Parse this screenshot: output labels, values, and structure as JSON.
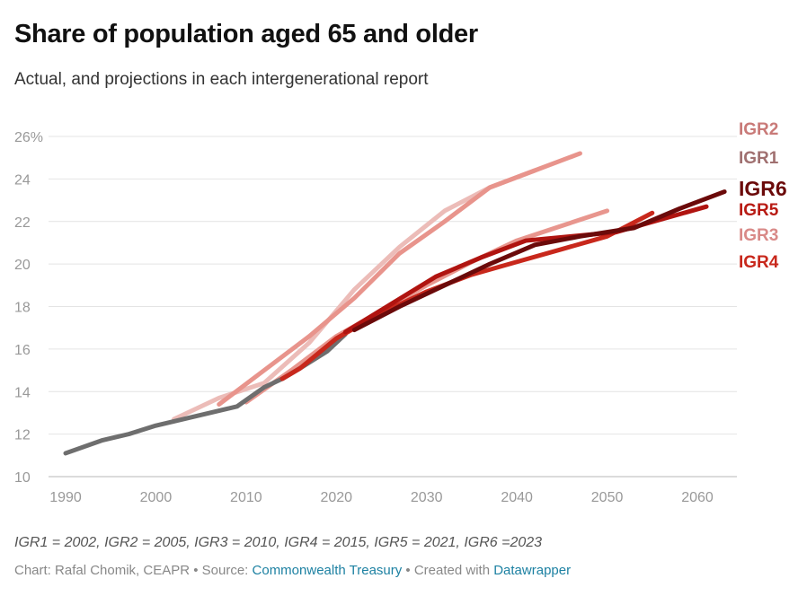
{
  "chart_data": {
    "type": "line",
    "title": "Share of population aged 65 and older",
    "subtitle": "Actual, and projections in each intergenerational report",
    "xlabel": "",
    "ylabel": "",
    "xlim": [
      1990,
      2065
    ],
    "ylim": [
      10,
      26
    ],
    "x_ticks": [
      "1990",
      "2000",
      "2010",
      "2020",
      "2030",
      "2040",
      "2050",
      "2060"
    ],
    "x_tick_values": [
      1990,
      2000,
      2010,
      2020,
      2030,
      2040,
      2050,
      2060
    ],
    "y_ticks": [
      "26%",
      "24",
      "22",
      "20",
      "18",
      "16",
      "14",
      "12",
      "10"
    ],
    "y_tick_values": [
      26,
      24,
      22,
      20,
      18,
      16,
      14,
      12,
      10
    ],
    "grid": true,
    "legend_placement": "right",
    "series": [
      {
        "name": "IGR1",
        "label": "IGR1",
        "color": "#ecbcb8",
        "label_color": "#a07070",
        "x": [
          2002,
          2007,
          2012,
          2017,
          2022,
          2027,
          2032,
          2037,
          2042
        ],
        "y": [
          12.7,
          13.7,
          14.4,
          16.3,
          18.8,
          20.8,
          22.5,
          23.6,
          24.4
        ]
      },
      {
        "name": "IGR2",
        "label": "IGR2",
        "color": "#e8948c",
        "label_color": "#c97a78",
        "x": [
          2007,
          2012,
          2017,
          2022,
          2027,
          2032,
          2037,
          2042,
          2047
        ],
        "y": [
          13.4,
          15.0,
          16.6,
          18.4,
          20.5,
          22.0,
          23.6,
          24.4,
          25.2
        ]
      },
      {
        "name": "IGR3",
        "label": "IGR3",
        "color": "#e8968e",
        "label_color": "#d98a88",
        "x": [
          2010,
          2015,
          2020,
          2025,
          2030,
          2035,
          2040,
          2045,
          2050
        ],
        "y": [
          13.5,
          15.0,
          16.6,
          17.8,
          19.0,
          20.1,
          21.1,
          21.8,
          22.5
        ]
      },
      {
        "name": "IGR4",
        "label": "IGR4",
        "color": "#c8281c",
        "label_color": "#c8281c",
        "x": [
          2014,
          2016,
          2020,
          2025,
          2030,
          2035,
          2040,
          2045,
          2050,
          2055
        ],
        "y": [
          14.6,
          15.1,
          16.5,
          17.7,
          18.7,
          19.5,
          20.1,
          20.7,
          21.3,
          22.4
        ]
      },
      {
        "name": "IGR5",
        "label": "IGR5",
        "color": "#b01410",
        "label_color": "#b81b14",
        "x": [
          2021,
          2026,
          2031,
          2036,
          2041,
          2046,
          2051,
          2056,
          2061
        ],
        "y": [
          16.8,
          18.1,
          19.4,
          20.3,
          21.1,
          21.3,
          21.5,
          22.1,
          22.7
        ]
      },
      {
        "name": "IGR6",
        "label": "IGR6",
        "color": "#6b0a0a",
        "label_color": "#6b0a0a",
        "x": [
          2022,
          2027,
          2032,
          2037,
          2042,
          2047,
          2053,
          2058,
          2063
        ],
        "y": [
          16.9,
          18.0,
          19.0,
          20.0,
          20.9,
          21.3,
          21.7,
          22.6,
          23.4
        ]
      },
      {
        "name": "Actual",
        "label": "",
        "color": "#6e6e6e",
        "label_color": "#6e6e6e",
        "x": [
          1990,
          1994,
          1997,
          2000,
          2002,
          2005,
          2008,
          2009,
          2010,
          2012,
          2014,
          2016,
          2019,
          2021
        ],
        "y": [
          11.1,
          11.7,
          12.0,
          12.4,
          12.6,
          12.9,
          13.2,
          13.3,
          13.6,
          14.2,
          14.6,
          15.1,
          15.9,
          16.7
        ]
      }
    ],
    "label_order": [
      "IGR2",
      "IGR1",
      "IGR6",
      "IGR5",
      "IGR3",
      "IGR4"
    ]
  },
  "notes": "IGR1 = 2002, IGR2 = 2005, IGR3 = 2010, IGR4 = 2015, IGR5 = 2021, IGR6 =2023",
  "footer": {
    "prefix": "Chart: Rafal Chomik, CEAPR • Source: ",
    "source_link": "Commonwealth Treasury",
    "middle": " • Created with ",
    "tool_link": "Datawrapper"
  }
}
